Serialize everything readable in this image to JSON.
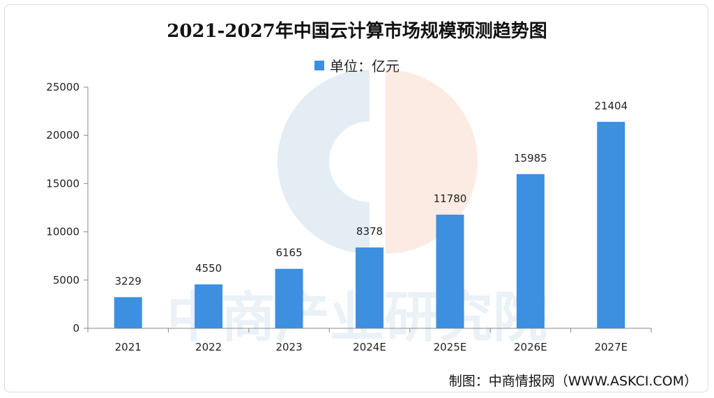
{
  "chart_data": {
    "type": "bar",
    "title": "2021-2027年中国云计算市场规模预测趋势图",
    "legend": "单位：亿元",
    "categories": [
      "2021",
      "2022",
      "2023",
      "2024E",
      "2025E",
      "2026E",
      "2027E"
    ],
    "series": [
      {
        "name": "单位：亿元",
        "values": [
          3229,
          4550,
          6165,
          8378,
          11780,
          15985,
          21404
        ]
      }
    ],
    "data_labels": [
      "3229",
      "4550",
      "6165",
      "8378",
      "11780",
      "15985",
      "21404"
    ],
    "ylim": [
      0,
      25000
    ],
    "yticks": [
      0,
      5000,
      10000,
      15000,
      20000,
      25000
    ],
    "grid": false,
    "legend_position": "top-center",
    "bar_color": "#3d8fe0"
  },
  "footer": "制图：中商情报网（WWW.ASKCI.COM）",
  "watermark": "中商产业研究院"
}
